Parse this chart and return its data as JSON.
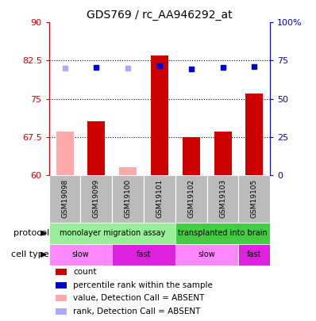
{
  "title": "GDS769 / rc_AA946292_at",
  "samples": [
    "GSM19098",
    "GSM19099",
    "GSM19100",
    "GSM19101",
    "GSM19102",
    "GSM19103",
    "GSM19105"
  ],
  "bar_values": [
    68.5,
    70.5,
    61.5,
    83.5,
    67.5,
    68.5,
    76.0
  ],
  "bar_colors": [
    "#ffaaaa",
    "#cc0000",
    "#ffaaaa",
    "#cc0000",
    "#cc0000",
    "#cc0000",
    "#cc0000"
  ],
  "rank_values": [
    70.0,
    70.5,
    70.0,
    71.5,
    69.5,
    70.5,
    71.0
  ],
  "rank_colors": [
    "#aaaaff",
    "#0000cc",
    "#aaaaff",
    "#0000cc",
    "#0000cc",
    "#0000cc",
    "#0000cc"
  ],
  "ylim_left": [
    60,
    90
  ],
  "ylim_right": [
    0,
    100
  ],
  "yticks_left": [
    60,
    67.5,
    75,
    82.5,
    90
  ],
  "ytick_labels_left": [
    "60",
    "67.5",
    "75",
    "82.5",
    "90"
  ],
  "yticks_right": [
    0,
    25,
    50,
    75,
    100
  ],
  "ytick_labels_right": [
    "0",
    "25",
    "50",
    "75",
    "100%"
  ],
  "hlines": [
    67.5,
    75,
    82.5
  ],
  "protocol_groups": [
    {
      "label": "monolayer migration assay",
      "start": 0,
      "end": 4,
      "color": "#99ee99"
    },
    {
      "label": "transplanted into brain",
      "start": 4,
      "end": 7,
      "color": "#44cc44"
    }
  ],
  "cell_type_groups": [
    {
      "label": "slow",
      "start": 0,
      "end": 2,
      "color": "#ff88ff"
    },
    {
      "label": "fast",
      "start": 2,
      "end": 4,
      "color": "#dd22dd"
    },
    {
      "label": "slow",
      "start": 4,
      "end": 6,
      "color": "#ff88ff"
    },
    {
      "label": "fast",
      "start": 6,
      "end": 7,
      "color": "#dd22dd"
    }
  ],
  "legend_items": [
    {
      "color": "#cc0000",
      "label": "count"
    },
    {
      "color": "#0000cc",
      "label": "percentile rank within the sample"
    },
    {
      "color": "#ffaaaa",
      "label": "value, Detection Call = ABSENT"
    },
    {
      "color": "#aaaaff",
      "label": "rank, Detection Call = ABSENT"
    }
  ],
  "bar_width": 0.55,
  "background_color": "#ffffff",
  "plot_bg": "#ffffff",
  "left_axis_color": "#cc0000",
  "right_axis_color": "#0000cc",
  "sample_band_color": "#bbbbbb"
}
